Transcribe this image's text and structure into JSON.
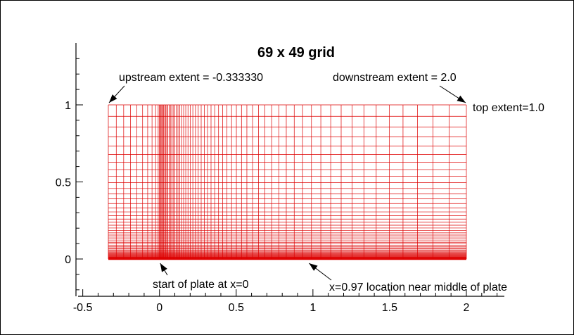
{
  "chart_data": {
    "type": "grid-mesh",
    "title": "69 x 49 grid",
    "grid": {
      "ni": 69,
      "nj": 49,
      "x_min": -0.33333,
      "x_max": 2.0,
      "y_min": 0.0,
      "y_max": 1.0,
      "plate_start_x": 0.0,
      "color": "#dd0000"
    },
    "xlim": [
      -0.55,
      2.25
    ],
    "ylim": [
      -0.25,
      1.4
    ],
    "x_ticks": [
      -0.5,
      0,
      0.5,
      1,
      1.5,
      2
    ],
    "x_tick_labels": [
      "-0.5",
      "0",
      "0.5",
      "1",
      "1.5",
      "2"
    ],
    "y_ticks": [
      0,
      0.5,
      1
    ],
    "y_tick_labels": [
      "0",
      "0.5",
      "1"
    ],
    "annotations": [
      {
        "id": "upstream",
        "text": "upstream extent = -0.333330",
        "target": [
          -0.33333,
          1.0
        ]
      },
      {
        "id": "downstream",
        "text": "downstream extent = 2.0",
        "target": [
          2.0,
          1.0
        ]
      },
      {
        "id": "top",
        "text": "top extent=1.0",
        "target": [
          2.0,
          1.0
        ]
      },
      {
        "id": "plate-start",
        "text": "start of plate at x=0",
        "target": [
          0.0,
          0.0
        ]
      },
      {
        "id": "mid-plate",
        "text": "x=0.97 location near middle of plate",
        "target": [
          0.97,
          0.0
        ]
      }
    ]
  }
}
